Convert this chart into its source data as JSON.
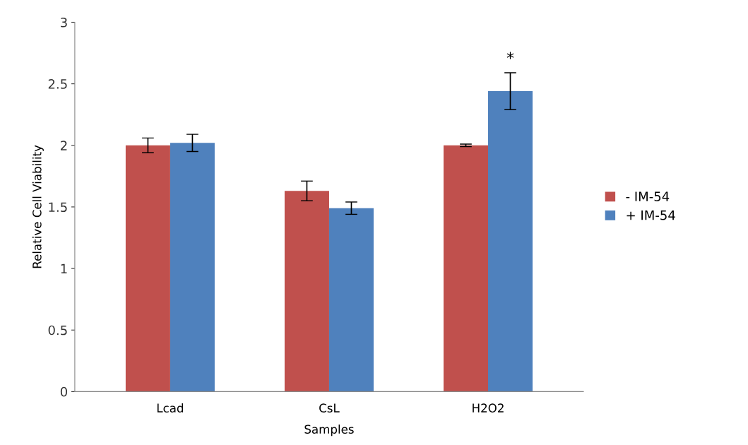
{
  "chart_data": {
    "type": "bar",
    "xlabel": "Samples",
    "ylabel": "Relative Cell Viability",
    "categories": [
      "Lcad",
      "CsL",
      "H2O2"
    ],
    "series": [
      {
        "name": "- IM-54",
        "color": "#c0504d",
        "values": [
          2.0,
          1.63,
          2.0
        ],
        "errors": [
          0.06,
          0.08,
          0.01
        ]
      },
      {
        "name": "+ IM-54",
        "color": "#4f81bd",
        "values": [
          2.02,
          1.49,
          2.44
        ],
        "errors": [
          0.07,
          0.05,
          0.15
        ]
      }
    ],
    "ylim": [
      0,
      3
    ],
    "yticks": [
      0,
      0.5,
      1,
      1.5,
      2,
      2.5,
      3
    ],
    "grid": false,
    "legend": "right",
    "annotations": [
      "*"
    ]
  }
}
